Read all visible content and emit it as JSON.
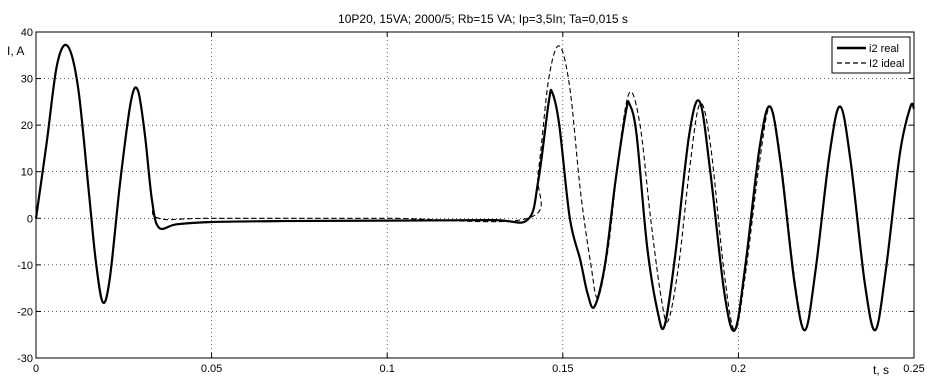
{
  "chart_data": {
    "type": "line",
    "title": "10P20, 15VA; 2000/5;    Rb=15 VA; Ip=3,5In; Ta=0,015 s",
    "xlabel": "t, s",
    "ylabel": "I, A",
    "xlim": [
      0,
      0.25
    ],
    "ylim": [
      -30,
      40
    ],
    "xticks": [
      0,
      0.05,
      0.1,
      0.15,
      0.2,
      0.25
    ],
    "xtick_labels": [
      "0",
      "0.05",
      "0.1",
      "0.15",
      "0.2",
      "0.25"
    ],
    "yticks": [
      -30,
      -20,
      -10,
      0,
      10,
      20,
      30,
      40
    ],
    "ytick_labels": [
      "-30",
      "-20",
      "-10",
      "0",
      "10",
      "20",
      "30",
      "40"
    ],
    "grid": true,
    "legend_position": "top-right",
    "series": [
      {
        "name": "i2 real",
        "style": "solid",
        "x": [
          0,
          0.003,
          0.006,
          0.009,
          0.012,
          0.015,
          0.017,
          0.019,
          0.021,
          0.024,
          0.027,
          0.029,
          0.031,
          0.033,
          0.035,
          0.04,
          0.05,
          0.07,
          0.1,
          0.13,
          0.14,
          0.143,
          0.146,
          0.147,
          0.149,
          0.152,
          0.155,
          0.157,
          0.159,
          0.162,
          0.165,
          0.168,
          0.169,
          0.171,
          0.174,
          0.177,
          0.179,
          0.182,
          0.186,
          0.189,
          0.192,
          0.196,
          0.199,
          0.202,
          0.206,
          0.209,
          0.212,
          0.216,
          0.219,
          0.222,
          0.226,
          0.229,
          0.232,
          0.236,
          0.239,
          0.242,
          0.246,
          0.249,
          0.25
        ],
        "values": [
          0,
          16,
          33,
          37,
          28,
          6,
          -9,
          -18,
          -13,
          8,
          25,
          27.5,
          18,
          4,
          -2,
          -1.3,
          -0.8,
          -0.6,
          -0.5,
          -0.4,
          -0.3,
          8,
          25,
          27,
          20,
          0,
          -9,
          -16,
          -19,
          -10,
          8,
          23,
          24.5,
          18,
          -6,
          -20,
          -23,
          -8,
          18,
          25,
          10,
          -16,
          -24,
          -10,
          15,
          24,
          12,
          -14,
          -24,
          -11,
          14,
          24,
          12,
          -14,
          -24,
          -11,
          14,
          24,
          23.5
        ]
      },
      {
        "name": "I2 ideal",
        "style": "dashed",
        "x": [
          0,
          0.003,
          0.006,
          0.009,
          0.012,
          0.015,
          0.017,
          0.019,
          0.021,
          0.024,
          0.027,
          0.029,
          0.031,
          0.033,
          0.035,
          0.05,
          0.1,
          0.14,
          0.143,
          0.146,
          0.149,
          0.152,
          0.155,
          0.158,
          0.16,
          0.163,
          0.166,
          0.169,
          0.172,
          0.175,
          0.178,
          0.18,
          0.183,
          0.186,
          0.189,
          0.192,
          0.196,
          0.199,
          0.202,
          0.206,
          0.209,
          0.212,
          0.216,
          0.219,
          0.222,
          0.226,
          0.229,
          0.232,
          0.236,
          0.239,
          0.242,
          0.246,
          0.249,
          0.25
        ],
        "values": [
          0,
          16,
          33,
          37,
          28,
          6,
          -9,
          -18,
          -13,
          8,
          25,
          27.5,
          18,
          4,
          0,
          0,
          0,
          0,
          10,
          30,
          37,
          28,
          6,
          -10,
          -17,
          -6,
          14,
          27,
          20,
          0,
          -17,
          -22,
          -10,
          10,
          24.5,
          16,
          -12,
          -24,
          -12,
          12,
          24,
          13,
          -13,
          -24,
          -11,
          14,
          24,
          12,
          -14,
          -24,
          -11,
          14,
          24,
          23.5
        ]
      }
    ]
  }
}
